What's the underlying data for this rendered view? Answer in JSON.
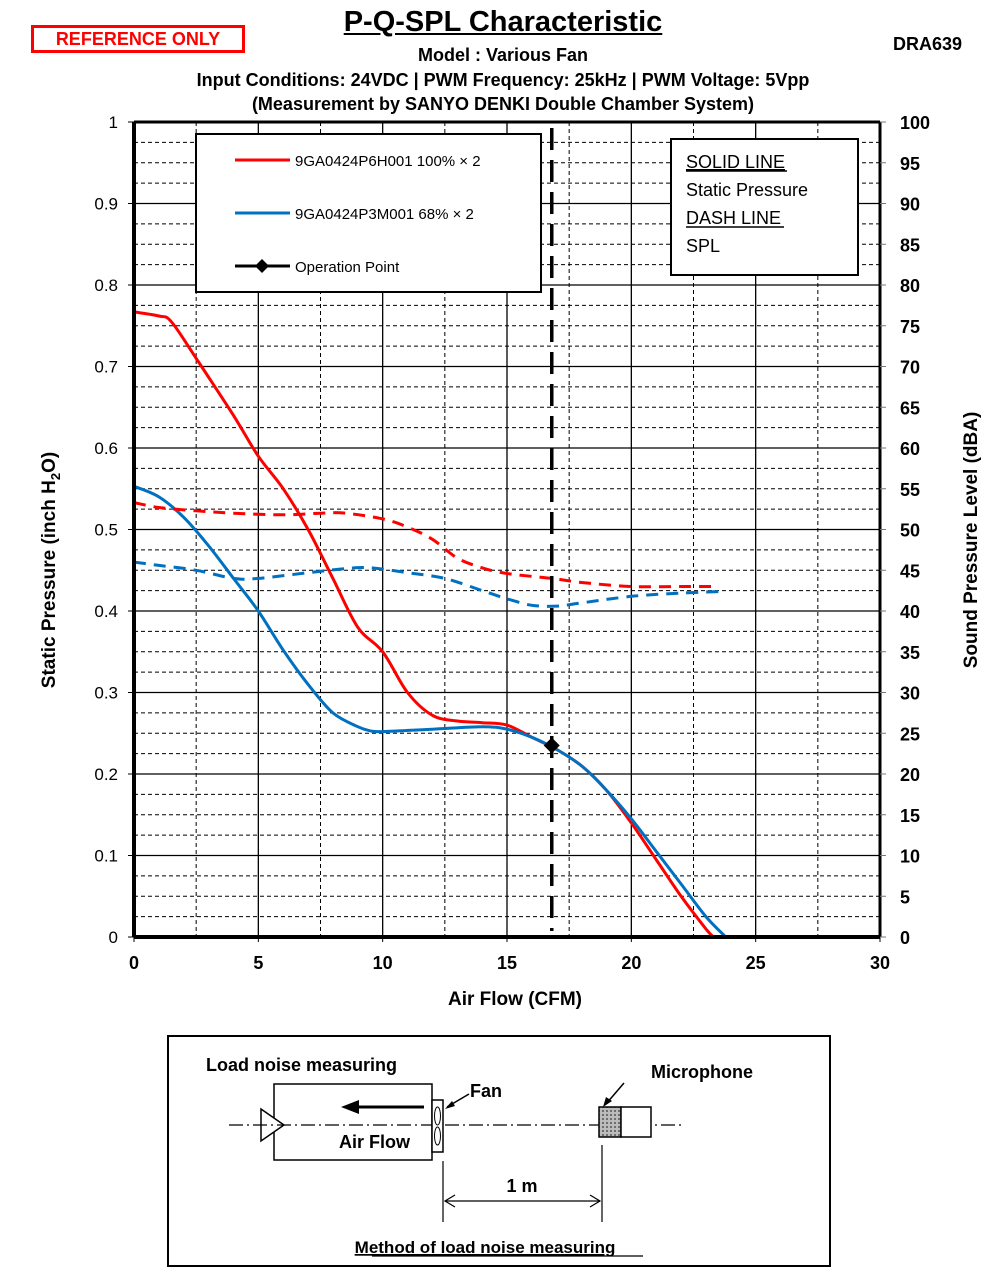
{
  "header": {
    "badge": "REFERENCE ONLY",
    "title": "P-Q-SPL Characteristic",
    "doc_code": "DRA639",
    "model": "Model : Various Fan",
    "conditions": "Input Conditions: 24VDC | PWM Frequency: 25kHz | PWM Voltage: 5Vpp",
    "measurement": "(Measurement by SANYO DENKI Double Chamber System)"
  },
  "colors": {
    "red": "#ff0000",
    "blue": "#0070c0",
    "badge": "#ff0000"
  },
  "chart_data": {
    "type": "line",
    "title": "P-Q-SPL Characteristic",
    "xlabel": "Air Flow (CFM)",
    "ylabel": "Static Pressure (inch H2O)",
    "ylabel_parts": [
      "Static Pressure (inch H",
      "2",
      "O)"
    ],
    "y2label": "Sound Pressure Level (dBA)",
    "xlim": [
      0,
      30
    ],
    "ylim": [
      0,
      1
    ],
    "y2lim": [
      0,
      100
    ],
    "xticks": [
      "0",
      "5",
      "10",
      "15",
      "20",
      "25",
      "30"
    ],
    "yticks": [
      "0",
      "0.1",
      "0.2",
      "0.3",
      "0.4",
      "0.5",
      "0.6",
      "0.7",
      "0.8",
      "0.9",
      "1"
    ],
    "y2ticks": [
      "0",
      "5",
      "10",
      "15",
      "20",
      "25",
      "30",
      "35",
      "40",
      "45",
      "50",
      "55",
      "60",
      "65",
      "70",
      "75",
      "80",
      "85",
      "90",
      "95",
      "100"
    ],
    "grid": true,
    "legend": {
      "placement": "top-left",
      "entries": [
        "9GA0424P6H001 100% × 2",
        "9GA0424P3M001 68% × 2",
        "Operation Point"
      ]
    },
    "note": {
      "placement": "top-right",
      "lines": [
        "SOLID LINE",
        "Static Pressure",
        "DASH LINE",
        "SPL"
      ]
    },
    "series": [
      {
        "name": "9GA0424P6H001 100% × 2 Static Pressure",
        "axis": "left",
        "style": "solid",
        "color": "#ff0000",
        "x": [
          0,
          1,
          1.5,
          2.5,
          4,
          5,
          6,
          7,
          8,
          9,
          10,
          11,
          12,
          13,
          14,
          15,
          16,
          17,
          18,
          19,
          20,
          21,
          22,
          23,
          23.3
        ],
        "y": [
          0.767,
          0.762,
          0.755,
          0.71,
          0.64,
          0.59,
          0.55,
          0.5,
          0.44,
          0.38,
          0.35,
          0.3,
          0.272,
          0.265,
          0.263,
          0.26,
          0.245,
          0.23,
          0.21,
          0.18,
          0.14,
          0.095,
          0.05,
          0.01,
          0
        ]
      },
      {
        "name": "9GA0424P3M001 68% × 2 Static Pressure",
        "axis": "left",
        "style": "solid",
        "color": "#0070c0",
        "x": [
          0,
          1,
          2,
          3,
          4,
          5,
          6,
          7,
          8,
          9,
          9.5,
          10,
          12,
          14,
          15,
          16,
          17,
          18,
          19,
          20,
          21,
          22,
          23,
          23.8
        ],
        "y": [
          0.553,
          0.54,
          0.515,
          0.48,
          0.44,
          0.4,
          0.352,
          0.31,
          0.275,
          0.258,
          0.253,
          0.252,
          0.255,
          0.258,
          0.255,
          0.245,
          0.23,
          0.21,
          0.18,
          0.145,
          0.105,
          0.065,
          0.025,
          0
        ]
      },
      {
        "name": "9GA0424P6H001 100% × 2 SPL",
        "axis": "right",
        "style": "dash",
        "color": "#ff0000",
        "x": [
          0,
          1,
          2.5,
          4,
          6,
          7.5,
          8.5,
          10,
          11,
          12,
          13,
          14,
          15,
          16.8,
          18,
          20,
          22,
          23.5
        ],
        "y": [
          53.3,
          52.7,
          52.3,
          52,
          51.8,
          52,
          52,
          51.3,
          50.3,
          48.8,
          46.5,
          45.3,
          44.6,
          44,
          43.5,
          43,
          43,
          43
        ]
      },
      {
        "name": "9GA0424P3M001 68% × 2 SPL",
        "axis": "right",
        "style": "dash",
        "color": "#0070c0",
        "x": [
          0,
          1,
          2.5,
          4,
          5,
          7,
          8.5,
          9.5,
          11,
          12.5,
          14,
          15,
          16,
          17,
          18,
          20,
          22,
          23.7
        ],
        "y": [
          46,
          45.6,
          45,
          44,
          44,
          44.7,
          45.2,
          45.3,
          44.7,
          44,
          42.5,
          41.5,
          40.7,
          40.6,
          41,
          41.8,
          42.2,
          42.4
        ]
      }
    ],
    "operation_point": {
      "x": 16.8,
      "y": 0.235
    }
  },
  "diagram": {
    "heading": "Load noise measuring",
    "fan_label": "Fan",
    "microphone_label": "Microphone",
    "airflow_label": "Air Flow",
    "distance_label": "1 m",
    "caption": "Method of load noise measuring"
  }
}
